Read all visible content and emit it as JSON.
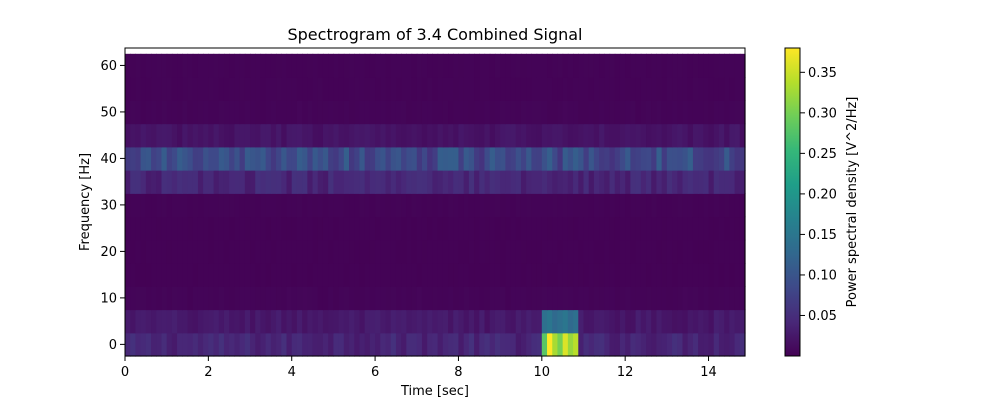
{
  "chart_data": {
    "type": "heatmap",
    "title": "Spectrogram of 3.4 Combined Signal",
    "xlabel": "Time [sec]",
    "ylabel": "Frequency [Hz]",
    "xlim": [
      0,
      14.875
    ],
    "ylim": [
      -2.5,
      63.75
    ],
    "x_ticks": [
      0,
      2,
      4,
      6,
      8,
      10,
      12,
      14
    ],
    "x_tick_labels": [
      "0",
      "2",
      "4",
      "6",
      "8",
      "10",
      "12",
      "14"
    ],
    "y_ticks": [
      0,
      10,
      20,
      30,
      40,
      50,
      60
    ],
    "y_tick_labels": [
      "0",
      "10",
      "20",
      "30",
      "40",
      "50",
      "60"
    ],
    "time_step": 0.125,
    "time_count": 119,
    "freq_step": 5,
    "freq_bins": [
      0,
      5,
      10,
      15,
      20,
      25,
      30,
      35,
      40,
      45,
      50,
      55,
      60
    ],
    "colormap": "viridis",
    "grid": false,
    "colorbar": {
      "label": "Power spectral density [V^2/Hz]",
      "range": [
        0.0,
        0.38
      ],
      "ticks": [
        0.05,
        0.1,
        0.15,
        0.2,
        0.25,
        0.3,
        0.35
      ],
      "tick_labels": [
        "0.05",
        "0.10",
        "0.15",
        "0.20",
        "0.25",
        "0.30",
        "0.35"
      ]
    },
    "band_levels": {
      "0": 0.04,
      "5": 0.025,
      "10": 0.004,
      "15": 0.002,
      "20": 0.002,
      "25": 0.002,
      "30": 0.003,
      "35": 0.04,
      "40": 0.085,
      "45": 0.02,
      "50": 0.004,
      "55": 0.003,
      "60": 0.003
    },
    "band_variation": 0.35,
    "burst": {
      "t_start": 10.0,
      "t_end": 10.875,
      "values_0hz": [
        0.28,
        0.38,
        0.33,
        0.3,
        0.36,
        0.32,
        0.34
      ],
      "values_5hz": [
        0.14,
        0.15,
        0.13,
        0.14,
        0.15,
        0.13,
        0.14
      ]
    }
  },
  "colors": {
    "viridis": [
      "#440154",
      "#482878",
      "#3e4989",
      "#31688e",
      "#26828e",
      "#1f9e89",
      "#35b779",
      "#6ece58",
      "#b5de2b",
      "#fde725"
    ],
    "axis": "#000000",
    "background": "#ffffff"
  }
}
